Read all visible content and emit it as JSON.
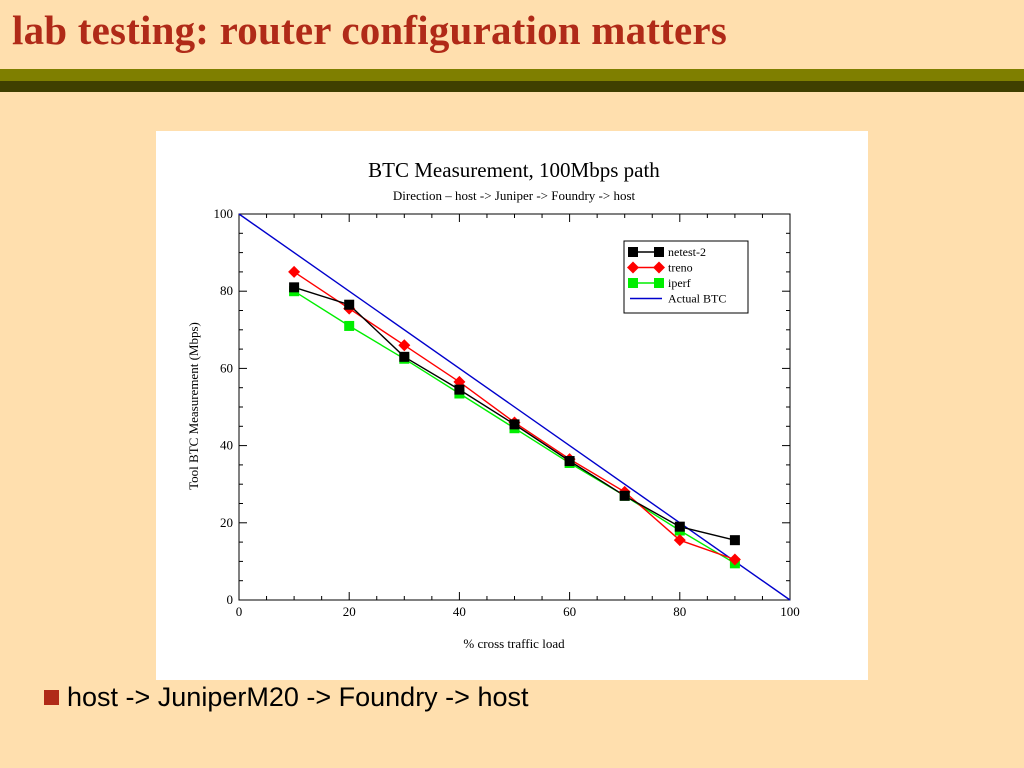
{
  "slide": {
    "title": "lab testing: router configuration matters",
    "bullets": [
      "host -> JuniperM20 -> Foundry -> host"
    ]
  },
  "colors": {
    "background": "#FFDFAE",
    "title": "#B02A18",
    "rule_top": "#7F7F00",
    "rule_bottom": "#3F3F00",
    "bullet": "#B02A18"
  },
  "chart_data": {
    "type": "line",
    "title": "BTC Measurement, 100Mbps path",
    "subtitle": "Direction – host -> Juniper -> Foundry -> host",
    "xlabel": "% cross traffic load",
    "ylabel": "Tool BTC Measurement (Mbps)",
    "xlim": [
      0,
      100
    ],
    "ylim": [
      0,
      100
    ],
    "xticks": [
      0,
      20,
      40,
      60,
      80,
      100
    ],
    "yticks": [
      0,
      20,
      40,
      60,
      80,
      100
    ],
    "grid": false,
    "legend_position": "top-right",
    "series": [
      {
        "name": "netest-2",
        "color": "#000000",
        "marker": "square",
        "x": [
          10,
          20,
          30,
          40,
          50,
          60,
          70,
          80,
          90
        ],
        "y": [
          81,
          76.5,
          63,
          54.5,
          45.5,
          36,
          27,
          19,
          15.5
        ]
      },
      {
        "name": "treno",
        "color": "#FF0000",
        "marker": "diamond",
        "x": [
          10,
          20,
          30,
          40,
          50,
          60,
          70,
          80,
          90
        ],
        "y": [
          85,
          75.5,
          66,
          56.5,
          46,
          36.5,
          28,
          15.5,
          10.5
        ]
      },
      {
        "name": "iperf",
        "color": "#00EE00",
        "marker": "square",
        "x": [
          10,
          20,
          30,
          40,
          50,
          60,
          70,
          80,
          90
        ],
        "y": [
          80,
          71,
          62.5,
          53.5,
          44.5,
          35.5,
          27,
          18,
          9.5
        ]
      },
      {
        "name": "Actual BTC",
        "color": "#0000CC",
        "marker": "none",
        "x": [
          0,
          100
        ],
        "y": [
          100,
          0
        ]
      }
    ]
  }
}
